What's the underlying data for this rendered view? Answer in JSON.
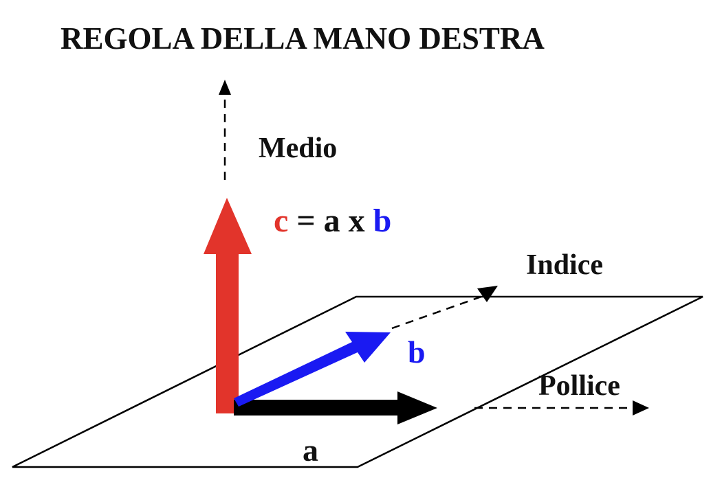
{
  "title": "REGOLA DELLA MANO DESTRA",
  "labels": {
    "medio": "Medio",
    "indice": "Indice",
    "pollice": "Pollice",
    "b": "b",
    "a": "a"
  },
  "formula": {
    "c": "c",
    "eq": " = ",
    "a": "a",
    "x": " x ",
    "b": "b"
  },
  "colors": {
    "c_vector": "#e2342b",
    "b_vector": "#1a1af2",
    "a_vector": "#000000",
    "text": "#111111"
  }
}
